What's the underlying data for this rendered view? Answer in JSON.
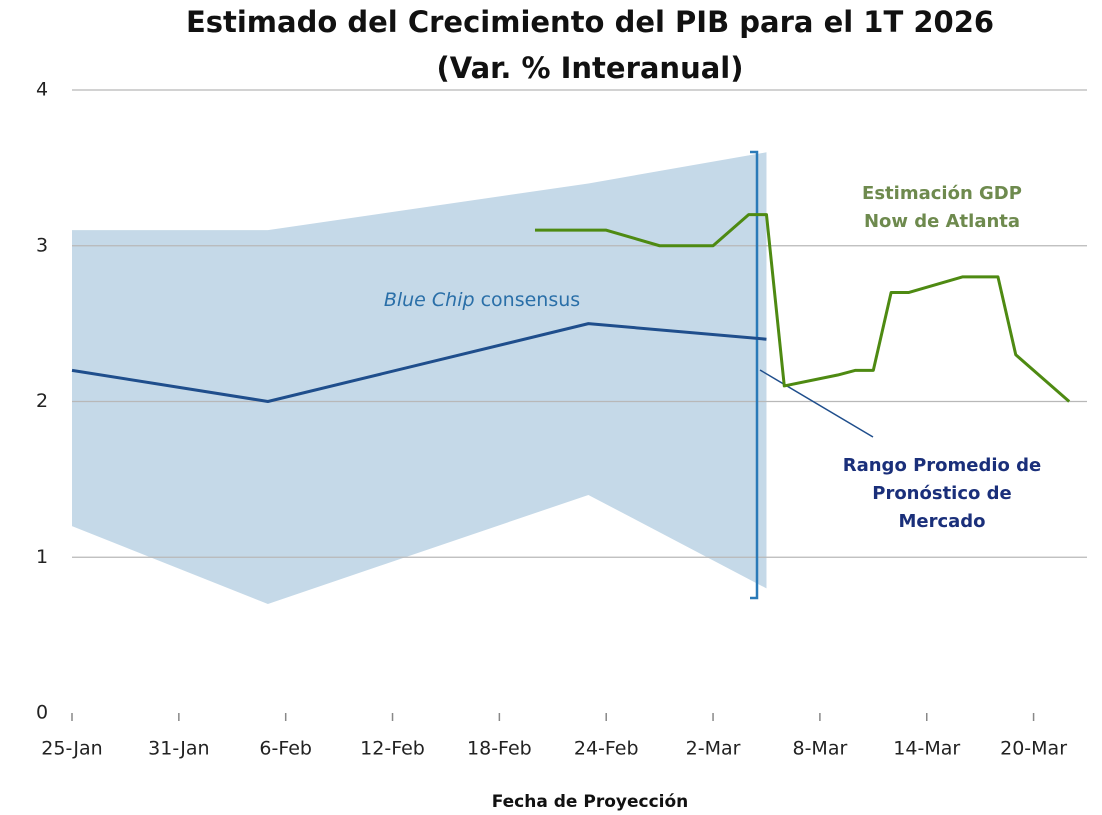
{
  "chart_data": {
    "type": "line",
    "title": "Estimado del Crecimiento del PIB para el 1T 2026",
    "subtitle": "(Var. % Interanual)",
    "x_label": "Fecha de Proyección",
    "xlim": [
      "25-Jan",
      "23-Mar"
    ],
    "xticks": [
      "25-Jan",
      "31-Jan",
      "6-Feb",
      "12-Feb",
      "18-Feb",
      "24-Feb",
      "2-Mar",
      "8-Mar",
      "14-Mar",
      "20-Mar"
    ],
    "ylim": [
      0,
      4
    ],
    "yticks": [
      0,
      1,
      2,
      3,
      4
    ],
    "grid": true,
    "band": {
      "color": "#c5d9e8",
      "x": [
        "25-Jan",
        "5-Feb",
        "23-Feb",
        "5-Mar"
      ],
      "upper": [
        3.1,
        3.1,
        3.4,
        3.6
      ],
      "lower": [
        1.2,
        0.7,
        1.4,
        0.8
      ]
    },
    "series": [
      {
        "color": "#1f4e8c",
        "x": [
          "25-Jan",
          "5-Feb",
          "23-Feb",
          "5-Mar"
        ],
        "values": [
          2.2,
          2.0,
          2.5,
          2.4
        ]
      },
      {
        "color": "#4e8a12",
        "x": [
          "20-Feb",
          "24-Feb",
          "27-Feb",
          "2-Mar",
          "4-Mar",
          "5-Mar",
          "6-Mar",
          "9-Mar",
          "10-Mar",
          "11-Mar",
          "12-Mar",
          "13-Mar",
          "16-Mar",
          "18-Mar",
          "19-Mar",
          "22-Mar"
        ],
        "values": [
          3.1,
          3.1,
          3.0,
          3.0,
          3.2,
          3.2,
          2.1,
          2.17,
          2.2,
          2.2,
          2.7,
          2.7,
          2.8,
          2.8,
          2.3,
          2.0
        ]
      }
    ],
    "annotations": {
      "blue_chip": [
        "Blue Chip",
        "consensus"
      ],
      "gdpnow": [
        "Estimación GDP",
        "Now de Atlanta"
      ],
      "range": [
        "Rango Promedio de",
        "Pronóstico de",
        "Mercado"
      ]
    }
  }
}
